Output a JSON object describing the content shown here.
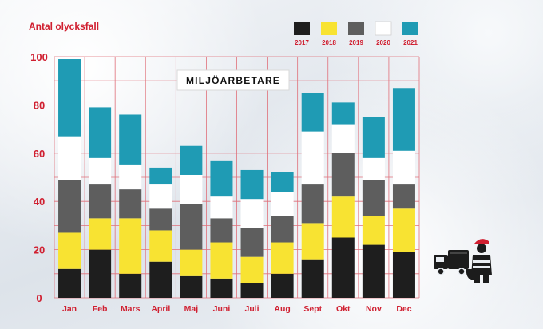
{
  "chart_data": {
    "type": "bar",
    "stacked": true,
    "title": "MILJÖARBETARE",
    "ylabel": "Antal olycksfall",
    "xlabel": "",
    "ylim": [
      0,
      100
    ],
    "yticks": [
      0,
      20,
      40,
      60,
      80,
      100
    ],
    "grid": true,
    "legend_position": "top-right",
    "categories": [
      "Jan",
      "Feb",
      "Mars",
      "April",
      "Maj",
      "Juni",
      "Juli",
      "Aug",
      "Sept",
      "Okt",
      "Nov",
      "Dec"
    ],
    "series": [
      {
        "name": "2017",
        "color": "#1e1e1e",
        "values": [
          12,
          20,
          10,
          15,
          9,
          8,
          6,
          10,
          16,
          25,
          22,
          19
        ]
      },
      {
        "name": "2018",
        "color": "#f8e332",
        "values": [
          15,
          13,
          23,
          13,
          11,
          15,
          11,
          13,
          15,
          17,
          12,
          18
        ]
      },
      {
        "name": "2019",
        "color": "#5e5e5e",
        "values": [
          22,
          14,
          12,
          9,
          19,
          10,
          12,
          11,
          16,
          18,
          15,
          10
        ]
      },
      {
        "name": "2020",
        "color": "#ffffff",
        "values": [
          18,
          11,
          10,
          10,
          12,
          9,
          12,
          10,
          22,
          12,
          9,
          14
        ]
      },
      {
        "name": "2021",
        "color": "#1f9bb4",
        "values": [
          32,
          21,
          21,
          7,
          12,
          15,
          12,
          8,
          16,
          9,
          17,
          26
        ]
      }
    ]
  },
  "icons": {
    "truck": "garbage-truck-icon",
    "worker": "sanitation-worker-icon"
  },
  "colors": {
    "text_accent": "#d01f30",
    "grid": "#e0707a"
  }
}
